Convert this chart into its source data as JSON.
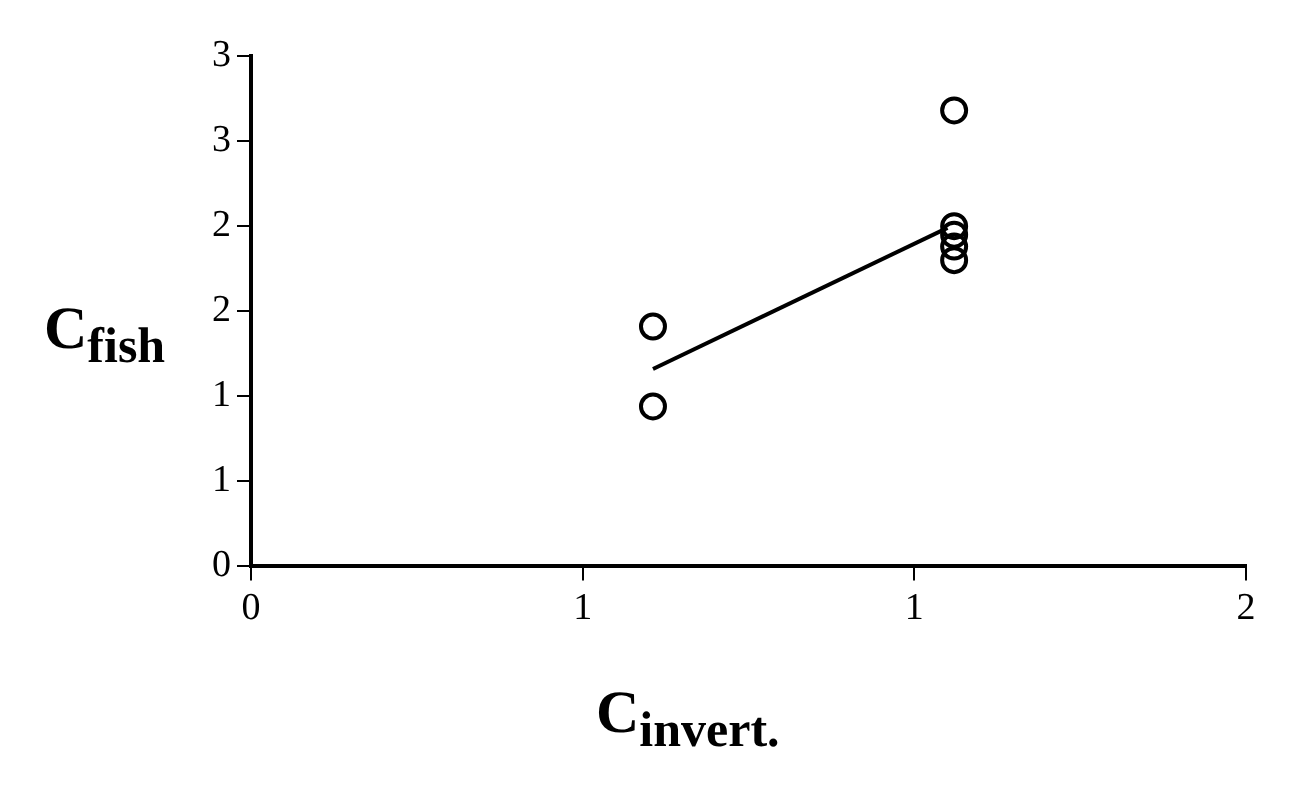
{
  "chart_data": {
    "type": "scatter",
    "xlabel": "C$_{invert.}$",
    "ylabel": "C$_{fish}$",
    "series": [
      {
        "color": "#000000",
        "x": [
          0.606,
          0.606,
          1.06,
          1.06,
          1.06,
          1.06,
          1.06
        ],
        "values": [
          1.41,
          0.94,
          2.68,
          2.0,
          1.95,
          1.88,
          1.8
        ],
        "marker": "circle"
      },
      {
        "type": "line",
        "color": "#000000",
        "x": [
          0.606,
          1.05
        ],
        "values": [
          1.16,
          1.99
        ],
        "marker": "none"
      }
    ],
    "xlim": [
      0,
      1.5
    ],
    "xticks": [
      0,
      {
        "value": 0.5,
        "label": "1"
      },
      1,
      {
        "value": 1.5,
        "label": "2"
      }
    ],
    "ylim": [
      0,
      3
    ],
    "yticks": [
      0,
      {
        "value": 0.5,
        "label": "1"
      },
      1,
      {
        "value": 1.5,
        "label": "2"
      },
      2,
      {
        "value": 2.5,
        "label": "3"
      },
      3
    ],
    "grid": false,
    "legend": false
  }
}
